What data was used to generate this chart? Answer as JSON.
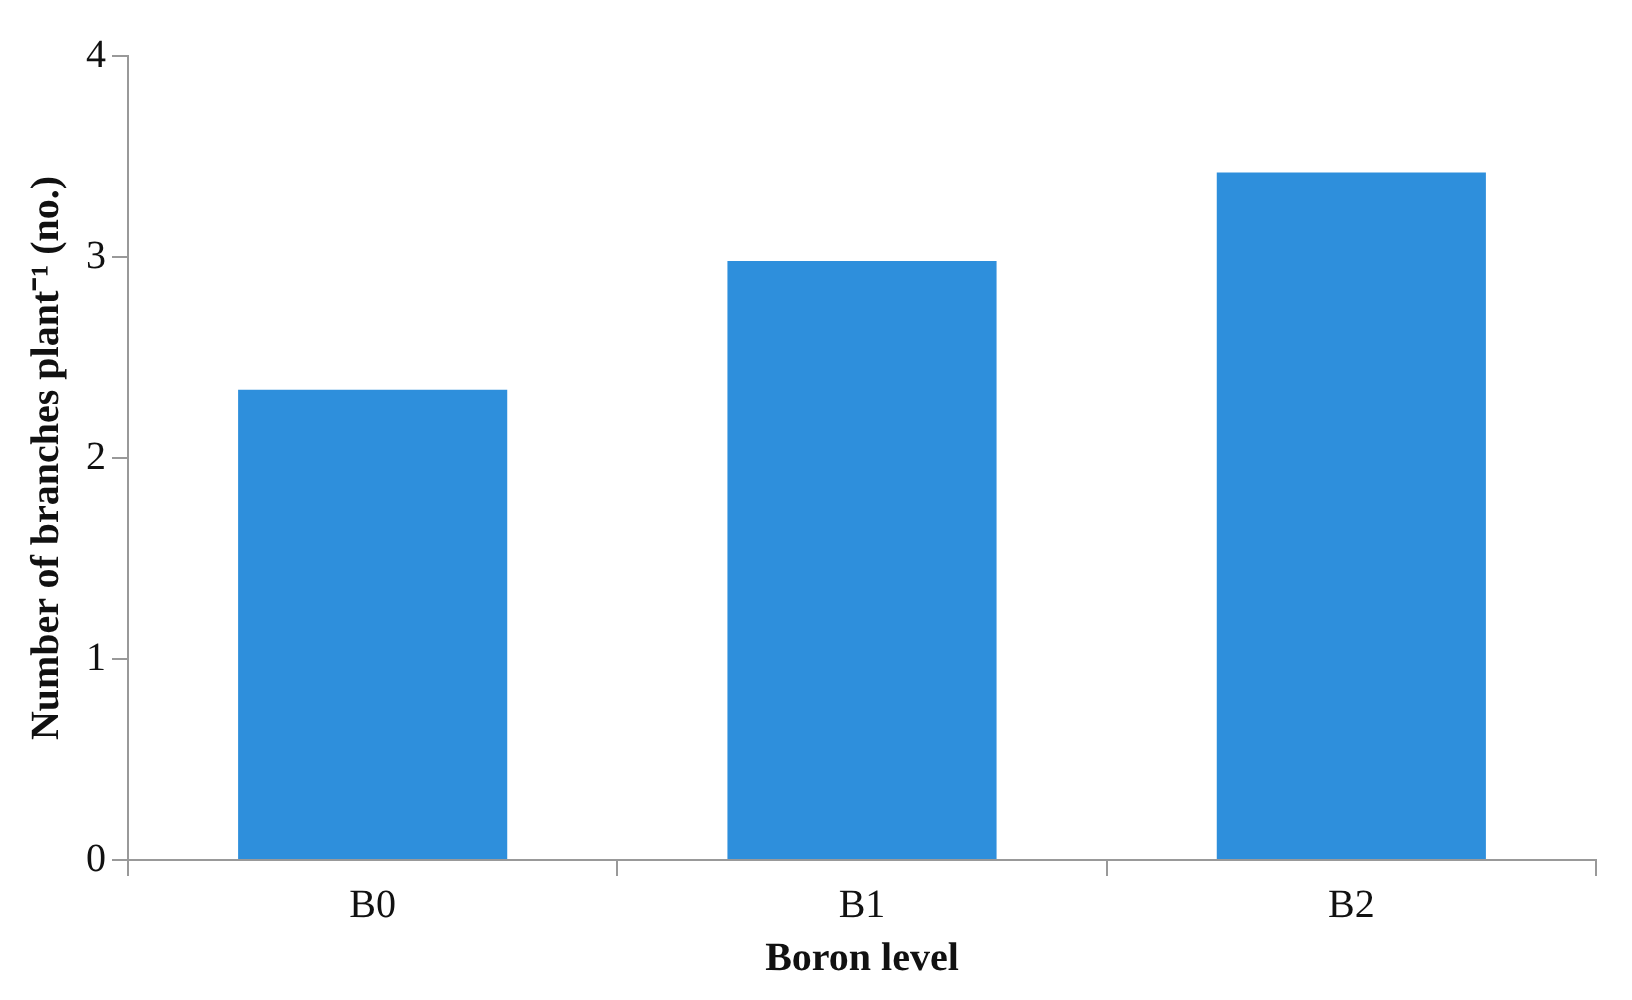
{
  "chart_data": {
    "type": "bar",
    "xlabel": "Boron level",
    "ylabel": "Number of branches plant⁻¹ (no.)",
    "categories": [
      "B0",
      "B1",
      "B2"
    ],
    "values": [
      2.34,
      2.98,
      3.42
    ],
    "color": "#2e8fdc",
    "ylim": [
      0,
      4
    ],
    "yticks": [
      0,
      1,
      2,
      3,
      4
    ],
    "grid": false,
    "legend": false
  }
}
